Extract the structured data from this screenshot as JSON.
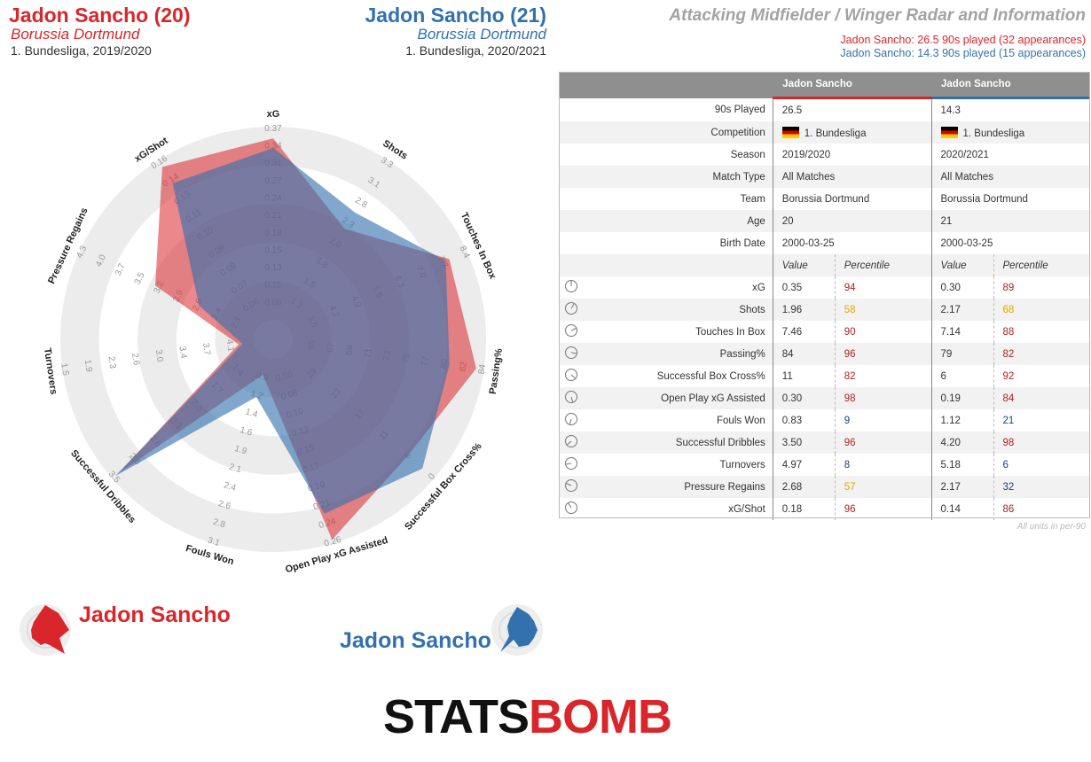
{
  "header": {
    "player1": {
      "name": "Jadon Sancho (20)",
      "team": "Borussia Dortmund",
      "competition": "1. Bundesliga, 2019/2020"
    },
    "player2": {
      "name": "Jadon Sancho (21)",
      "team": "Borussia Dortmund",
      "competition": "1. Bundesliga, 2020/2021"
    },
    "title": "Attacking Midfielder / Winger Radar and Information",
    "played1": "Jadon Sancho: 26.5 90s played (32 appearances)",
    "played2": "Jadon Sancho: 14.3 90s played (15 appearances)"
  },
  "colors": {
    "player1": "#d9262b",
    "player2": "#3371ae",
    "header_bg": "#8f8f8f"
  },
  "table": {
    "col_headers": [
      "Jadon Sancho",
      "Jadon Sancho"
    ],
    "info_rows": [
      {
        "label": "90s Played",
        "v1": "26.5",
        "v2": "14.3"
      },
      {
        "label": "Competition",
        "v1": "1. Bundesliga",
        "v2": "1. Bundesliga",
        "flag": true
      },
      {
        "label": "Season",
        "v1": "2019/2020",
        "v2": "2020/2021"
      },
      {
        "label": "Match Type",
        "v1": "All Matches",
        "v2": "All Matches"
      },
      {
        "label": "Team",
        "v1": "Borussia Dortmund",
        "v2": "Borussia Dortmund"
      },
      {
        "label": "Age",
        "v1": "20",
        "v2": "21"
      },
      {
        "label": "Birth Date",
        "v1": "2000-03-25",
        "v2": "2000-03-25"
      }
    ],
    "sub_headers": {
      "value": "Value",
      "percentile": "Percentile"
    },
    "stat_rows": [
      {
        "label": "xG",
        "v1": "0.35",
        "p1": "94",
        "v2": "0.30",
        "p2": "89"
      },
      {
        "label": "Shots",
        "v1": "1.96",
        "p1": "58",
        "v2": "2.17",
        "p2": "68"
      },
      {
        "label": "Touches In Box",
        "v1": "7.46",
        "p1": "90",
        "v2": "7.14",
        "p2": "88"
      },
      {
        "label": "Passing%",
        "v1": "84",
        "p1": "96",
        "v2": "79",
        "p2": "82"
      },
      {
        "label": "Successful Box Cross%",
        "v1": "11",
        "p1": "82",
        "v2": "6",
        "p2": "92"
      },
      {
        "label": "Open Play xG Assisted",
        "v1": "0.30",
        "p1": "98",
        "v2": "0.19",
        "p2": "84"
      },
      {
        "label": "Fouls Won",
        "v1": "0.83",
        "p1": "9",
        "v2": "1.12",
        "p2": "21"
      },
      {
        "label": "Successful Dribbles",
        "v1": "3.50",
        "p1": "96",
        "v2": "4.20",
        "p2": "98"
      },
      {
        "label": "Turnovers",
        "v1": "4.97",
        "p1": "8",
        "v2": "5.18",
        "p2": "6"
      },
      {
        "label": "Pressure Regains",
        "v1": "2.68",
        "p1": "57",
        "v2": "2.17",
        "p2": "32"
      },
      {
        "label": "xG/Shot",
        "v1": "0.18",
        "p1": "96",
        "v2": "0.14",
        "p2": "86"
      }
    ],
    "units_note": "All units in per-90"
  },
  "chart_data": {
    "type": "radar",
    "metrics": [
      "xG",
      "Shots",
      "Touches In Box",
      "Passing%",
      "Successful Box Cross%",
      "Open Play xG Assisted",
      "Fouls Won",
      "Successful Dribbles",
      "Turnovers",
      "Pressure Regains",
      "xG/Shot"
    ],
    "scale_ticks": [
      [
        "0.08",
        "0.11",
        "0.13",
        "0.15",
        "0.18",
        "0.21",
        "0.24",
        "0.27",
        "0.31",
        "0.34",
        "0.37"
      ],
      [
        "1.3",
        "1.5",
        "1.8",
        "2.0",
        "2.3",
        "2.8",
        "3.1",
        "3.3"
      ],
      [
        "3.5",
        "4.2",
        "4.9",
        "5.6",
        "6.3",
        "7.0",
        "7.7",
        "8.4"
      ],
      [
        "65",
        "67",
        "69",
        "71",
        "73",
        "75",
        "77",
        "80",
        "82",
        "84"
      ],
      [
        "29",
        "23",
        "17",
        "11",
        "6",
        "0"
      ],
      [
        "0.06",
        "0.08",
        "0.10",
        "0.12",
        "0.15",
        "0.17",
        "0.19",
        "0.21",
        "0.24",
        "0.26"
      ],
      [
        "0.9",
        "1.2",
        "1.4",
        "1.6",
        "1.9",
        "2.1",
        "2.4",
        "2.6",
        "2.8",
        "3.1"
      ],
      [
        "1.4",
        "1.7",
        "2.0",
        "2.3",
        "2.6",
        "2.8",
        "3.5"
      ],
      [
        "4.1",
        "3.7",
        "3.4",
        "3.0",
        "2.6",
        "2.3",
        "1.9",
        "1.5"
      ],
      [
        "2.1",
        "2.4",
        "2.6",
        "2.9",
        "3.2",
        "3.5",
        "3.7",
        "4.0",
        "4.3"
      ],
      [
        "0.06",
        "0.07",
        "0.08",
        "0.09",
        "0.10",
        "0.11",
        "0.13",
        "0.14",
        "0.16"
      ]
    ],
    "series": [
      {
        "name": "Jadon Sancho",
        "percentiles": [
          94,
          58,
          90,
          96,
          82,
          98,
          9,
          96,
          8,
          57,
          96
        ],
        "color": "#d9262b"
      },
      {
        "name": "Jadon Sancho",
        "percentiles": [
          89,
          68,
          88,
          82,
          92,
          84,
          21,
          98,
          6,
          32,
          86
        ],
        "color": "#3371ae"
      }
    ],
    "range": [
      0,
      100
    ],
    "grid": "concentric rings"
  },
  "brand": {
    "part1": "STATS",
    "part2": "BOMB"
  }
}
